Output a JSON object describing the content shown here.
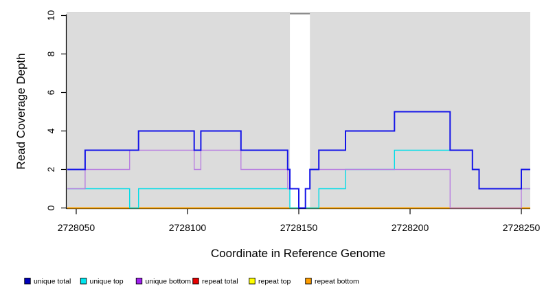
{
  "chart_data": {
    "type": "line",
    "subtype": "step-coverage",
    "title": "",
    "xlabel": "Coordinate in Reference Genome",
    "ylabel": "Read Coverage Depth",
    "xlim": [
      2728046,
      2728254
    ],
    "ylim": [
      0,
      10
    ],
    "x_ticks": {
      "values": [
        2728050,
        2728100,
        2728150,
        2728200,
        2728250
      ],
      "labels": [
        "2728050",
        "2728100",
        "2728150",
        "2728200",
        "2728250"
      ]
    },
    "y_ticks": {
      "values": [
        0,
        2,
        4,
        6,
        8,
        10
      ],
      "labels": [
        "0",
        "2",
        "4",
        "6",
        "8",
        "10"
      ]
    },
    "plot_background": "#DCDCDC",
    "gap_region": {
      "from": 2728146,
      "to": 2728155,
      "fill": "#FFFFFF",
      "top_edge_color": "#8D8D8D"
    },
    "grid": false,
    "legend_position": "bottom",
    "series": [
      {
        "key": "repeat_total",
        "name": "repeat total",
        "line_color": "#E00000",
        "legend_color": "#E60000",
        "width": 1.4,
        "points": [
          [
            2728046,
            0
          ],
          [
            2728254,
            0
          ]
        ]
      },
      {
        "key": "repeat_top",
        "name": "repeat top",
        "line_color": "#FFFF00",
        "legend_color": "#FFFF00",
        "width": 1.4,
        "points": [
          [
            2728046,
            0
          ],
          [
            2728254,
            0
          ]
        ]
      },
      {
        "key": "repeat_bottom",
        "name": "repeat bottom",
        "line_color": "#FFA500",
        "legend_color": "#FF9D00",
        "width": 2,
        "points": [
          [
            2728046,
            0
          ],
          [
            2728254,
            0
          ]
        ]
      },
      {
        "key": "unique_top",
        "name": "unique top",
        "line_color": "#00DDE8",
        "legend_color": "#00E5EE",
        "width": 1.4,
        "points": [
          [
            2728046,
            1
          ],
          [
            2728074,
            0
          ],
          [
            2728078,
            1
          ],
          [
            2728146,
            0
          ],
          [
            2728159,
            1
          ],
          [
            2728171,
            2
          ],
          [
            2728193,
            3
          ],
          [
            2728228,
            2
          ],
          [
            2728231,
            1
          ],
          [
            2728254,
            1
          ]
        ]
      },
      {
        "key": "unique_bottom",
        "name": "unique bottom",
        "line_color": "#B87FE0",
        "legend_color": "#A020F0",
        "width": 1.4,
        "points": [
          [
            2728046,
            1
          ],
          [
            2728054,
            2
          ],
          [
            2728074,
            3
          ],
          [
            2728103,
            2
          ],
          [
            2728106,
            3
          ],
          [
            2728124,
            2
          ],
          [
            2728145,
            1
          ],
          [
            2728150,
            0
          ],
          [
            2728153,
            1
          ],
          [
            2728155,
            2
          ],
          [
            2728218,
            0
          ],
          [
            2728250,
            1
          ],
          [
            2728254,
            1
          ]
        ]
      },
      {
        "key": "unique_total",
        "name": "unique total",
        "line_color": "#1414E8",
        "legend_color": "#0000BB",
        "width": 2,
        "points": [
          [
            2728046,
            2
          ],
          [
            2728054,
            3
          ],
          [
            2728078,
            4
          ],
          [
            2728103,
            3
          ],
          [
            2728106,
            4
          ],
          [
            2728124,
            3
          ],
          [
            2728145,
            2
          ],
          [
            2728146,
            1
          ],
          [
            2728150,
            0
          ],
          [
            2728153,
            1
          ],
          [
            2728155,
            2
          ],
          [
            2728159,
            3
          ],
          [
            2728171,
            4
          ],
          [
            2728193,
            5
          ],
          [
            2728218,
            3
          ],
          [
            2728228,
            2
          ],
          [
            2728231,
            1
          ],
          [
            2728250,
            2
          ],
          [
            2728254,
            2
          ]
        ]
      }
    ],
    "legend_order": [
      "unique_total",
      "unique_top",
      "unique_bottom",
      "repeat_total",
      "repeat_top",
      "repeat_bottom"
    ]
  }
}
